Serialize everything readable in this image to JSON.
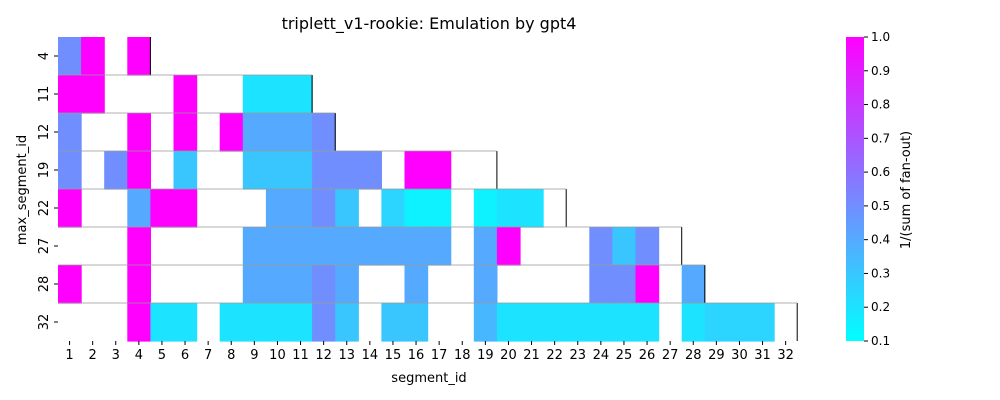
{
  "chart_data": {
    "type": "heatmap",
    "title": "triplett_v1-rookie: Emulation by gpt4",
    "xlabel": "segment_id",
    "ylabel": "max_segment_id",
    "x_categories": [
      1,
      2,
      3,
      4,
      5,
      6,
      7,
      8,
      9,
      10,
      11,
      12,
      13,
      14,
      15,
      16,
      17,
      18,
      19,
      20,
      21,
      22,
      23,
      24,
      25,
      26,
      27,
      28,
      29,
      30,
      31,
      32
    ],
    "y_categories": [
      4,
      11,
      12,
      19,
      22,
      27,
      28,
      32
    ],
    "colorbar": {
      "label": "1/(sum of fan-out)",
      "range": [
        0.1,
        1.0
      ],
      "ticks": [
        "0.1",
        "0.2",
        "0.3",
        "0.4",
        "0.5",
        "0.6",
        "0.7",
        "0.8",
        "0.9",
        "1.0"
      ],
      "colormap": "cool",
      "low_color": "#00ffff",
      "high_color": "#ff00ff"
    },
    "rows": [
      {
        "max_segment_id": 4,
        "values": [
          0.5,
          1.0,
          null,
          1.0
        ]
      },
      {
        "max_segment_id": 11,
        "values": [
          1.0,
          1.0,
          null,
          null,
          null,
          1.0,
          null,
          null,
          0.2,
          0.2,
          0.2
        ]
      },
      {
        "max_segment_id": 12,
        "values": [
          0.5,
          null,
          null,
          1.0,
          null,
          1.0,
          null,
          1.0,
          0.4,
          0.4,
          0.4,
          0.5
        ]
      },
      {
        "max_segment_id": 19,
        "values": [
          0.5,
          null,
          0.5,
          1.0,
          null,
          0.3,
          null,
          null,
          0.3,
          0.3,
          0.3,
          0.5,
          0.5,
          0.5,
          null,
          1.0,
          1.0,
          null,
          null
        ]
      },
      {
        "max_segment_id": 22,
        "values": [
          1.0,
          null,
          null,
          0.4,
          1.0,
          1.0,
          null,
          null,
          null,
          0.4,
          0.4,
          0.5,
          0.3,
          null,
          0.25,
          0.15,
          0.15,
          null,
          0.15,
          0.2,
          0.2,
          null
        ]
      },
      {
        "max_segment_id": 27,
        "values": [
          null,
          null,
          null,
          1.0,
          null,
          null,
          null,
          null,
          0.4,
          0.4,
          0.4,
          0.4,
          0.4,
          0.4,
          0.4,
          0.4,
          0.4,
          null,
          0.4,
          1.0,
          null,
          null,
          null,
          0.5,
          0.3,
          0.5,
          null
        ]
      },
      {
        "max_segment_id": 28,
        "values": [
          1.0,
          null,
          null,
          1.0,
          null,
          null,
          null,
          null,
          0.4,
          0.4,
          0.4,
          0.5,
          0.4,
          null,
          null,
          0.4,
          null,
          null,
          0.4,
          null,
          null,
          null,
          null,
          0.5,
          0.5,
          1.0,
          null,
          0.4
        ]
      },
      {
        "max_segment_id": 32,
        "values": [
          null,
          null,
          null,
          1.0,
          0.2,
          0.2,
          null,
          0.2,
          0.2,
          0.2,
          0.2,
          0.5,
          0.3,
          null,
          0.3,
          0.3,
          null,
          null,
          0.35,
          0.2,
          0.2,
          0.2,
          0.2,
          0.2,
          0.2,
          0.2,
          null,
          0.2,
          0.25,
          0.25,
          0.25,
          null
        ]
      }
    ],
    "grid": false,
    "legend": "colorbar-right"
  }
}
